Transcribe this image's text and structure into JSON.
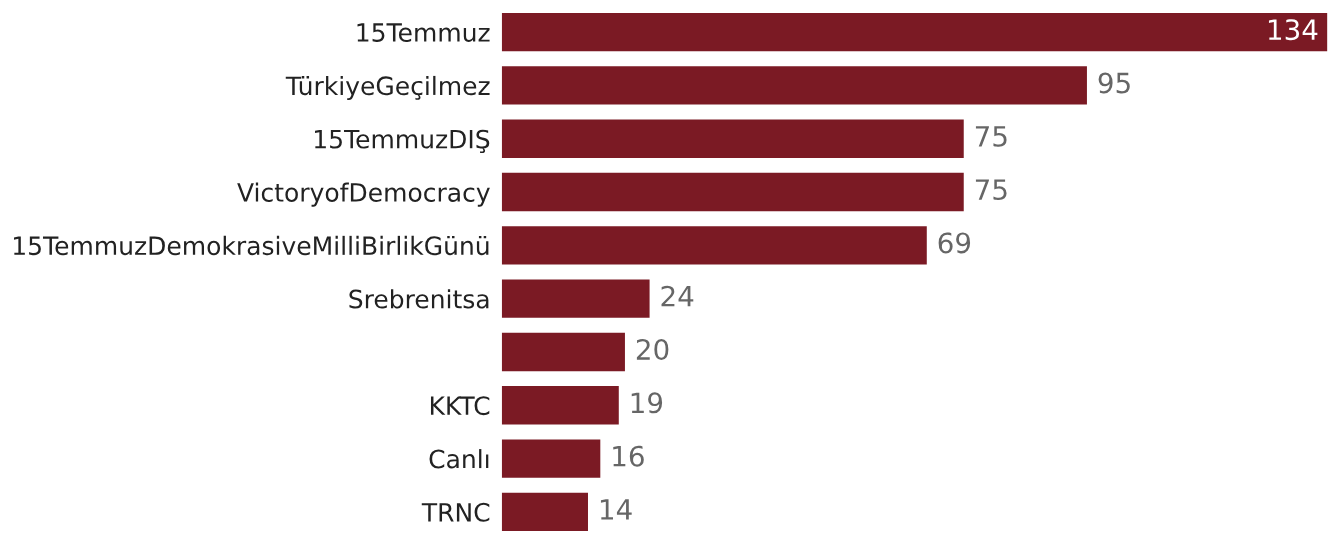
{
  "chart_data": {
    "type": "bar",
    "orientation": "horizontal",
    "categories": [
      "15Temmuz",
      "TürkiyeGeçilmez",
      "15TemmuzDIŞ",
      "VictoryofDemocracy",
      "15TemmuzDemokrasiveMilliBirlikGünü",
      "Srebrenitsa",
      null,
      "KKTC",
      "Canlı",
      "TRNC"
    ],
    "values": [
      134,
      95,
      75,
      75,
      69,
      24,
      20,
      19,
      16,
      14
    ],
    "color": "#7b1a24",
    "data_labels": true,
    "grid": false
  }
}
